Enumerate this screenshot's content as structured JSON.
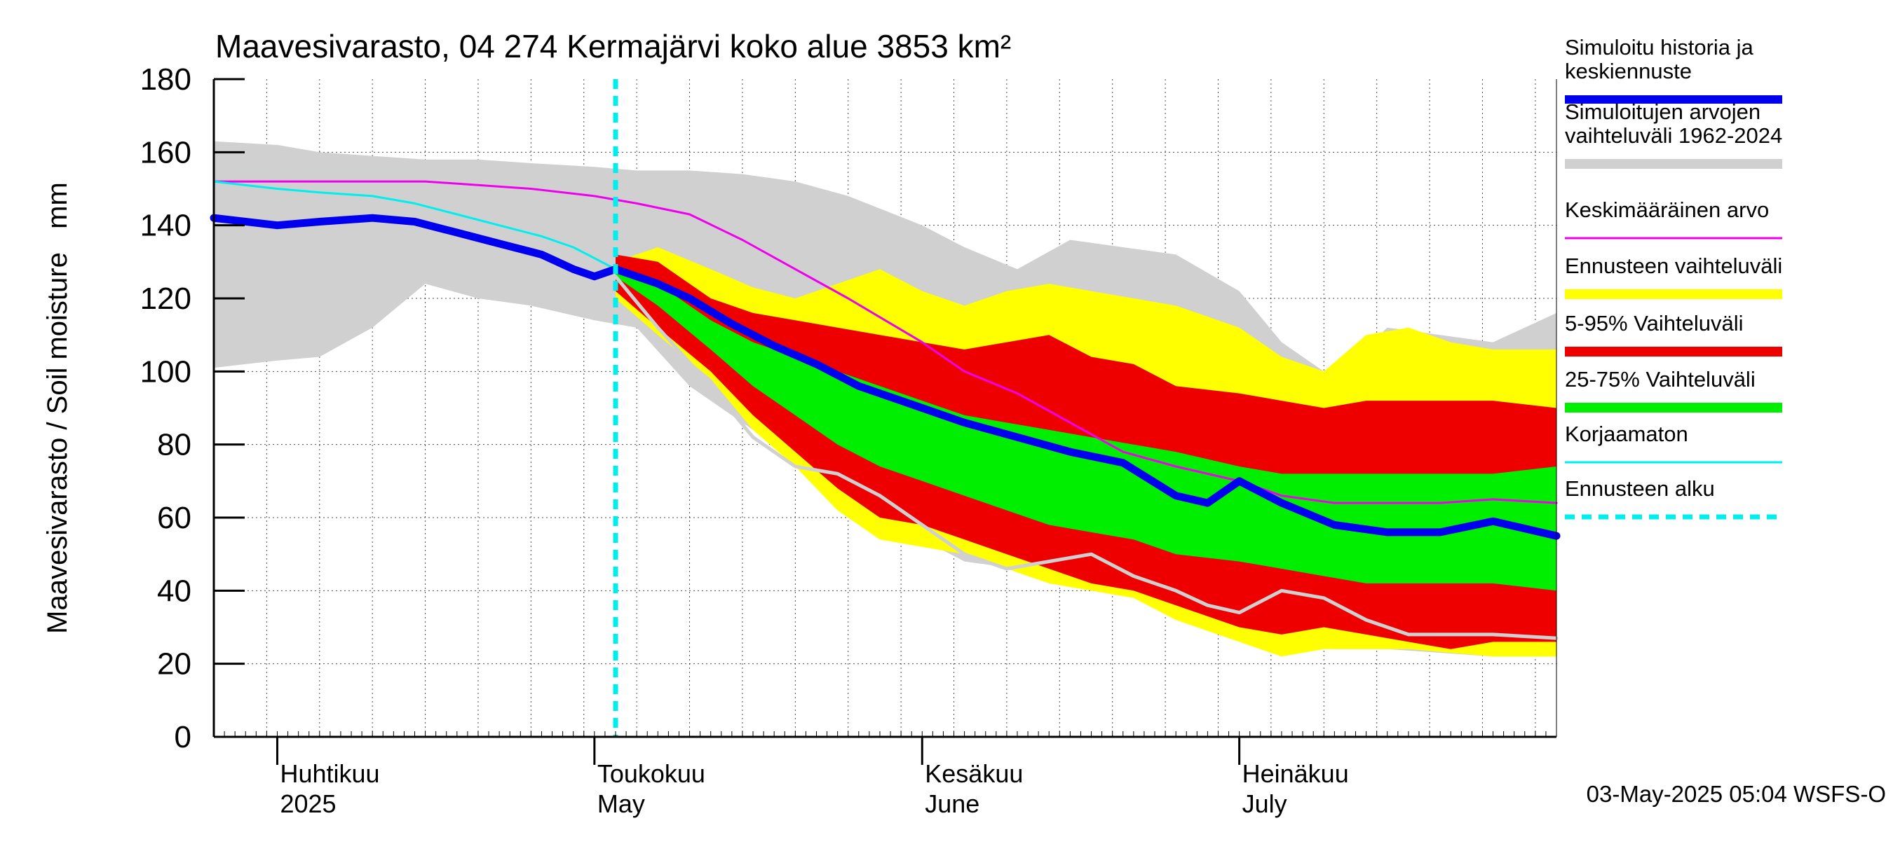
{
  "chart_data": {
    "type": "line",
    "title": "Maavesivarasto, 04 274 Kermajärvi koko alue 3853 km²",
    "ylabel": "Maavesivarasto / Soil moisture   mm",
    "ylim": [
      0,
      180
    ],
    "yticks": [
      0,
      20,
      40,
      60,
      80,
      100,
      120,
      140,
      160,
      180
    ],
    "x_range": [
      "2025-03-26",
      "2025-07-31"
    ],
    "grid": true,
    "legend_position": "right",
    "month_labels": [
      {
        "date": "2025-04-01",
        "fi": "Huhtikuu",
        "en": "2025"
      },
      {
        "date": "2025-05-01",
        "fi": "Toukokuu",
        "en": "May"
      },
      {
        "date": "2025-06-01",
        "fi": "Kesäkuu",
        "en": "June"
      },
      {
        "date": "2025-07-01",
        "fi": "Heinäkuu",
        "en": "July"
      }
    ],
    "forecast_start": "2025-05-03",
    "footer": "03-May-2025 05:04 WSFS-O",
    "legend": [
      {
        "key": "sim",
        "label": "Simuloitu historia ja keskiennuste",
        "lines": [
          "Simuloitu historia ja",
          "keskiennuste"
        ],
        "color": "#0000ee",
        "style": "thick"
      },
      {
        "key": "hist_range",
        "label": "Simuloitujen arvojen vaihteluväli 1962-2024",
        "lines": [
          "Simuloitujen arvojen",
          "vaihteluväli 1962-2024"
        ],
        "color": "#d0d0d0",
        "style": "band"
      },
      {
        "key": "mean",
        "label": "Keskimääräinen arvo",
        "lines": [
          "Keskimääräinen arvo"
        ],
        "color": "#ee00ee",
        "style": "thin"
      },
      {
        "key": "fc_range",
        "label": "Ennusteen vaihteluväli",
        "lines": [
          "Ennusteen vaihteluväli"
        ],
        "color": "#ffff00",
        "style": "band"
      },
      {
        "key": "p5_95",
        "label": "5-95% Vaihteluväli",
        "lines": [
          "5-95% Vaihteluväli"
        ],
        "color": "#ee0000",
        "style": "band"
      },
      {
        "key": "p25_75",
        "label": "25-75% Vaihteluväli",
        "lines": [
          "25-75% Vaihteluväli"
        ],
        "color": "#00ee00",
        "style": "band"
      },
      {
        "key": "uncorrected",
        "label": "Korjaamaton",
        "lines": [
          "Korjaamaton"
        ],
        "color": "#00eeee",
        "style": "thin"
      },
      {
        "key": "fc_start",
        "label": "Ennusteen alku",
        "lines": [
          "Ennusteen alku"
        ],
        "color": "#00eeee",
        "style": "dashed"
      }
    ],
    "series": {
      "hist_range": {
        "x": [
          "2025-03-26",
          "2025-04-01",
          "2025-04-05",
          "2025-04-10",
          "2025-04-15",
          "2025-04-20",
          "2025-04-25",
          "2025-05-01",
          "2025-05-05",
          "2025-05-10",
          "2025-05-15",
          "2025-05-20",
          "2025-05-25",
          "2025-06-01",
          "2025-06-05",
          "2025-06-10",
          "2025-06-15",
          "2025-06-20",
          "2025-06-25",
          "2025-07-01",
          "2025-07-05",
          "2025-07-10",
          "2025-07-15",
          "2025-07-20",
          "2025-07-25",
          "2025-07-31"
        ],
        "upper": [
          163,
          162,
          160,
          159,
          158,
          158,
          157,
          156,
          155,
          155,
          154,
          152,
          148,
          140,
          134,
          128,
          136,
          134,
          132,
          122,
          108,
          98,
          112,
          110,
          108,
          116
        ],
        "lower": [
          101,
          103,
          104,
          112,
          124,
          120,
          118,
          114,
          112,
          96,
          86,
          76,
          64,
          54,
          48,
          46,
          44,
          40,
          36,
          30,
          26,
          24,
          24,
          23,
          22,
          22
        ]
      },
      "fc_range": {
        "x": [
          "2025-05-03",
          "2025-05-07",
          "2025-05-12",
          "2025-05-16",
          "2025-05-20",
          "2025-05-24",
          "2025-05-28",
          "2025-06-01",
          "2025-06-05",
          "2025-06-09",
          "2025-06-13",
          "2025-06-17",
          "2025-06-21",
          "2025-06-25",
          "2025-07-01",
          "2025-07-05",
          "2025-07-09",
          "2025-07-13",
          "2025-07-17",
          "2025-07-21",
          "2025-07-25",
          "2025-07-31"
        ],
        "upper": [
          130,
          134,
          128,
          123,
          120,
          124,
          128,
          122,
          118,
          122,
          124,
          122,
          120,
          118,
          112,
          104,
          100,
          110,
          112,
          108,
          106,
          106
        ],
        "lower": [
          120,
          110,
          98,
          84,
          74,
          62,
          54,
          52,
          50,
          46,
          42,
          40,
          38,
          32,
          26,
          22,
          24,
          24,
          24,
          23,
          22,
          22
        ]
      },
      "p5_95": {
        "x": [
          "2025-05-03",
          "2025-05-07",
          "2025-05-12",
          "2025-05-16",
          "2025-05-20",
          "2025-05-24",
          "2025-05-28",
          "2025-06-01",
          "2025-06-05",
          "2025-06-09",
          "2025-06-13",
          "2025-06-17",
          "2025-06-21",
          "2025-06-25",
          "2025-07-01",
          "2025-07-05",
          "2025-07-09",
          "2025-07-13",
          "2025-07-17",
          "2025-07-21",
          "2025-07-25",
          "2025-07-31"
        ],
        "upper": [
          132,
          130,
          120,
          116,
          114,
          112,
          110,
          108,
          106,
          108,
          110,
          104,
          102,
          96,
          94,
          92,
          90,
          92,
          92,
          92,
          92,
          90
        ],
        "lower": [
          122,
          112,
          100,
          88,
          78,
          68,
          60,
          58,
          54,
          50,
          46,
          42,
          40,
          36,
          30,
          28,
          30,
          28,
          26,
          24,
          26,
          26
        ]
      },
      "p25_75": {
        "x": [
          "2025-05-03",
          "2025-05-07",
          "2025-05-12",
          "2025-05-16",
          "2025-05-20",
          "2025-05-24",
          "2025-05-28",
          "2025-06-01",
          "2025-06-05",
          "2025-06-09",
          "2025-06-13",
          "2025-06-17",
          "2025-06-21",
          "2025-06-25",
          "2025-07-01",
          "2025-07-05",
          "2025-07-09",
          "2025-07-13",
          "2025-07-17",
          "2025-07-21",
          "2025-07-25",
          "2025-07-31"
        ],
        "upper": [
          128,
          124,
          114,
          108,
          104,
          100,
          96,
          92,
          88,
          86,
          84,
          82,
          80,
          78,
          74,
          72,
          72,
          72,
          72,
          72,
          72,
          74
        ],
        "lower": [
          126,
          118,
          106,
          96,
          88,
          80,
          74,
          70,
          66,
          62,
          58,
          56,
          54,
          50,
          48,
          46,
          44,
          42,
          42,
          42,
          42,
          40
        ]
      },
      "sim": {
        "x": [
          "2025-03-26",
          "2025-04-01",
          "2025-04-05",
          "2025-04-10",
          "2025-04-14",
          "2025-04-18",
          "2025-04-22",
          "2025-04-26",
          "2025-04-29",
          "2025-05-01",
          "2025-05-03",
          "2025-05-07",
          "2025-05-10",
          "2025-05-14",
          "2025-05-18",
          "2025-05-22",
          "2025-05-26",
          "2025-06-01",
          "2025-06-05",
          "2025-06-10",
          "2025-06-15",
          "2025-06-20",
          "2025-06-25",
          "2025-06-28",
          "2025-07-01",
          "2025-07-05",
          "2025-07-10",
          "2025-07-15",
          "2025-07-20",
          "2025-07-25",
          "2025-07-31"
        ],
        "values": [
          142,
          140,
          141,
          142,
          141,
          138,
          135,
          132,
          128,
          126,
          128,
          124,
          120,
          113,
          107,
          102,
          96,
          90,
          86,
          82,
          78,
          75,
          66,
          64,
          70,
          64,
          58,
          56,
          56,
          59,
          55
        ]
      },
      "mean": {
        "x": [
          "2025-03-26",
          "2025-04-05",
          "2025-04-15",
          "2025-04-25",
          "2025-05-01",
          "2025-05-05",
          "2025-05-10",
          "2025-05-15",
          "2025-05-20",
          "2025-05-25",
          "2025-06-01",
          "2025-06-05",
          "2025-06-10",
          "2025-06-15",
          "2025-06-20",
          "2025-06-25",
          "2025-07-01",
          "2025-07-05",
          "2025-07-10",
          "2025-07-15",
          "2025-07-20",
          "2025-07-25",
          "2025-07-31"
        ],
        "values": [
          152,
          152,
          152,
          150,
          148,
          146,
          143,
          136,
          128,
          120,
          108,
          100,
          94,
          86,
          78,
          74,
          70,
          66,
          64,
          64,
          64,
          65,
          64
        ]
      },
      "uncorrected": {
        "x": [
          "2025-03-26",
          "2025-04-01",
          "2025-04-05",
          "2025-04-10",
          "2025-04-14",
          "2025-04-18",
          "2025-04-22",
          "2025-04-26",
          "2025-04-29",
          "2025-05-01",
          "2025-05-03"
        ],
        "values": [
          152,
          150,
          149,
          148,
          146,
          143,
          140,
          137,
          134,
          131,
          128
        ]
      },
      "uncorrected_2": {
        "x": [
          "2025-05-03",
          "2025-05-07",
          "2025-05-12",
          "2025-05-16",
          "2025-05-20",
          "2025-05-24",
          "2025-05-28",
          "2025-06-01",
          "2025-06-05",
          "2025-06-09",
          "2025-06-13",
          "2025-06-17",
          "2025-06-21",
          "2025-06-25",
          "2025-06-28",
          "2025-07-01",
          "2025-07-05",
          "2025-07-09",
          "2025-07-13",
          "2025-07-17",
          "2025-07-21",
          "2025-07-25",
          "2025-07-31"
        ],
        "values": [
          126,
          112,
          96,
          82,
          74,
          72,
          66,
          58,
          50,
          46,
          48,
          50,
          44,
          40,
          36,
          34,
          40,
          38,
          32,
          28,
          28,
          28,
          27
        ]
      }
    }
  }
}
